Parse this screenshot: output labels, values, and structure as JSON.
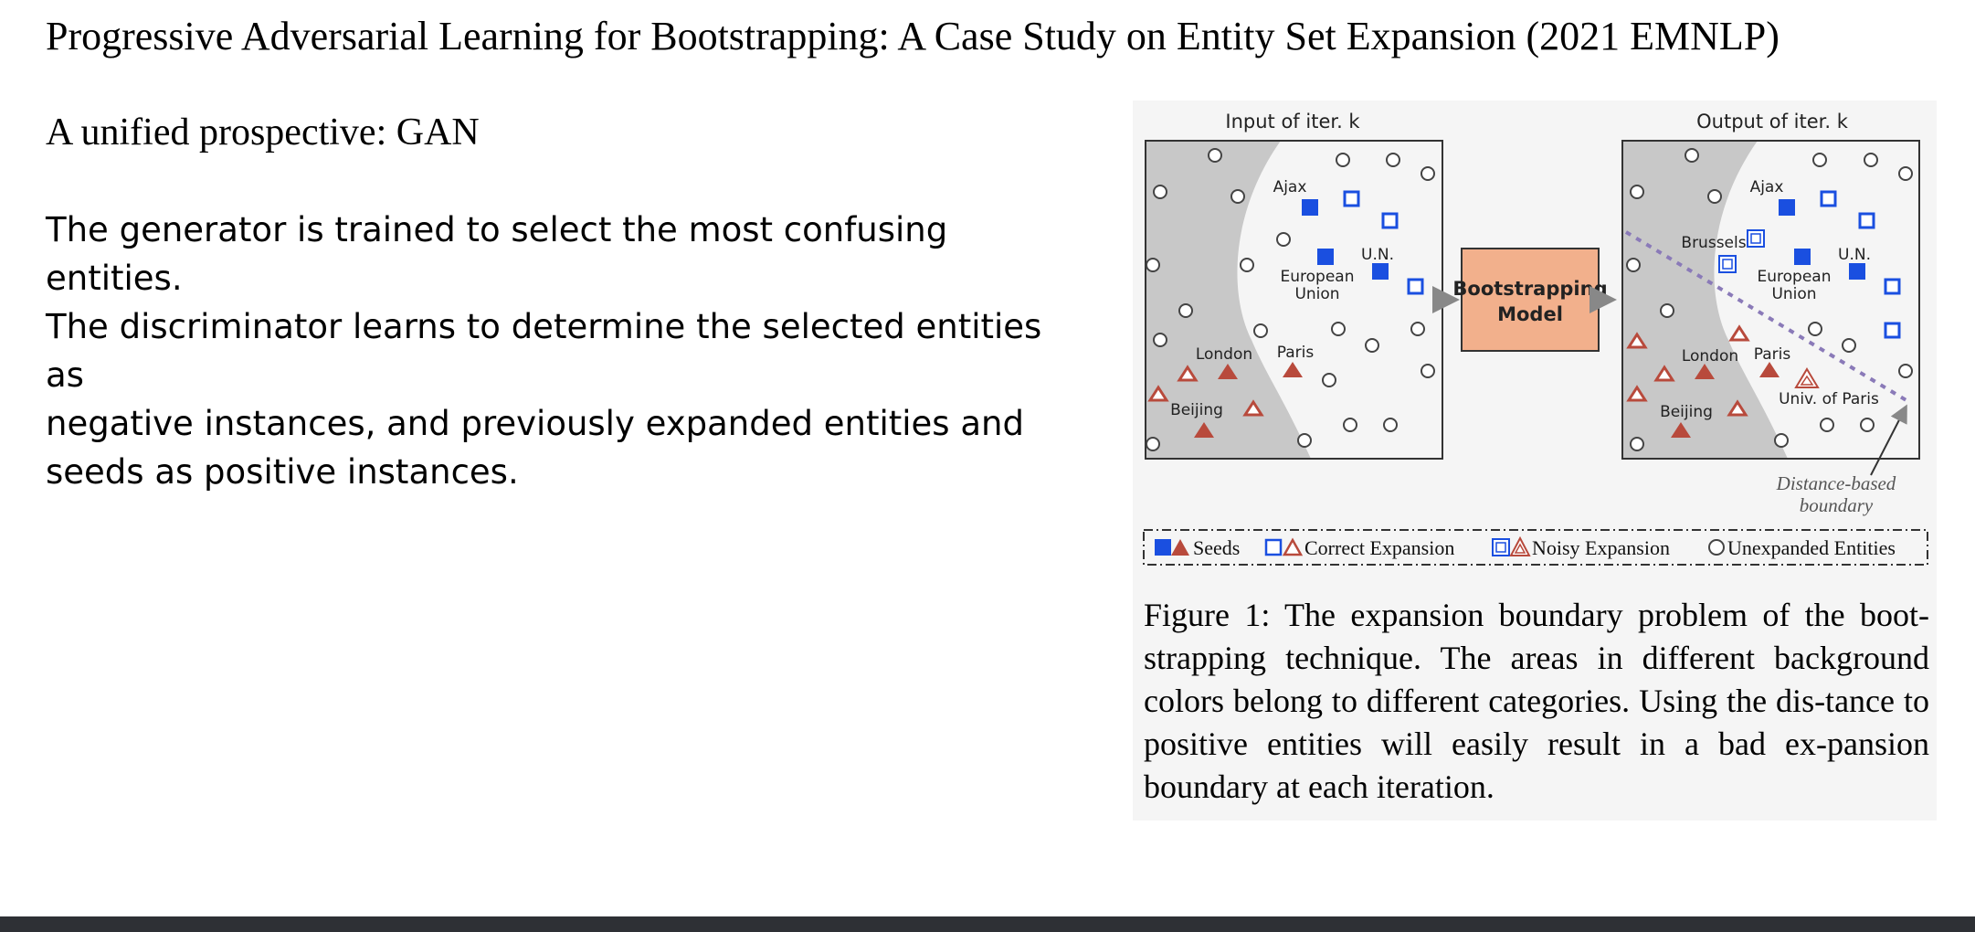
{
  "slide": {
    "title": "Progressive Adversarial Learning for Bootstrapping: A Case Study on Entity Set Expansion (2021 EMNLP)",
    "subtitle": "A unified prospective: GAN",
    "body": [
      "The generator is trained to select the most confusing entities.",
      "The discriminator learns to determine the selected entities as",
      "negative instances, and previously expanded entities and",
      "seeds as positive instances."
    ]
  },
  "figure": {
    "input_title": "Input of iter. k",
    "output_title": "Output of iter. k",
    "model_line1": "Bootstrapping",
    "model_line2": "Model",
    "entities": {
      "ajax": "Ajax",
      "un": "U.N.",
      "eu_line1": "European",
      "eu_line2": "Union",
      "london": "London",
      "paris": "Paris",
      "beijing": "Beijing",
      "brussels": "Brussels",
      "univ_paris": "Univ. of Paris"
    },
    "boundary_line1": "Distance-based",
    "boundary_line2": "boundary",
    "legend": {
      "seeds": "Seeds",
      "correct": "Correct Expansion",
      "noisy": "Noisy Expansion",
      "unexpanded": "Unexpanded Entities"
    },
    "caption": "Figure 1: The expansion boundary problem of the boot-strapping technique. The areas in different background colors belong to different categories. Using the dis-tance to positive entities will easily result in a bad ex-pansion boundary at each iteration.",
    "colors": {
      "seed_blue": "#1a4fe0",
      "seed_red": "#b84a3c",
      "region_gray": "#c8c8c8",
      "model_fill": "#f2b08c",
      "boundary_purple": "#8a7ab8"
    }
  }
}
